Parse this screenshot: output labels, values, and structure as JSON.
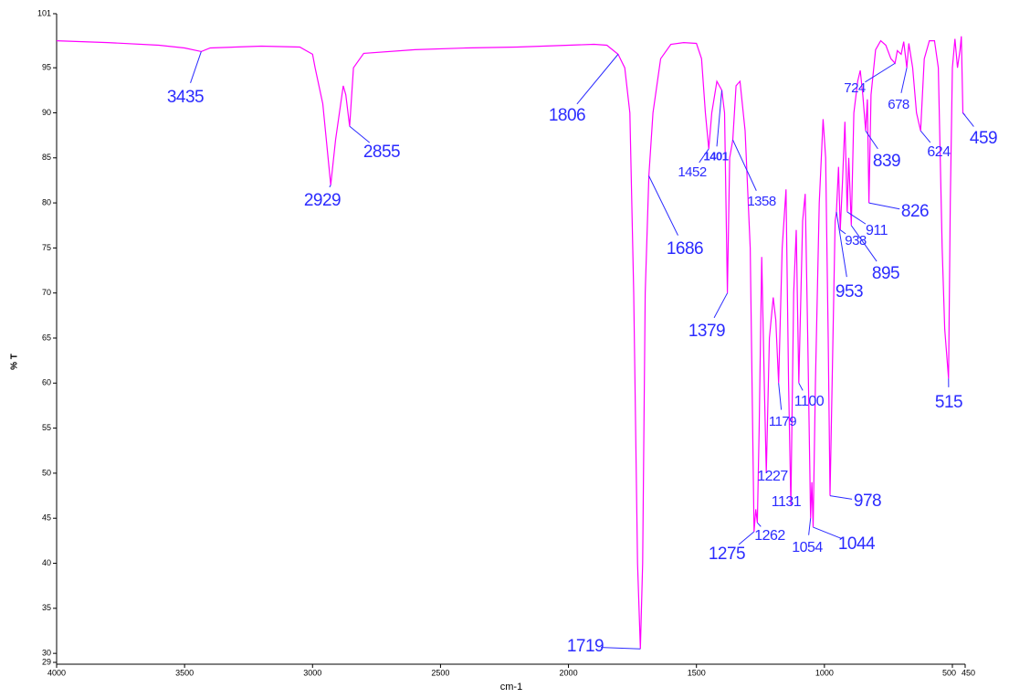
{
  "chart_data": {
    "type": "line",
    "x_label": "cm-1",
    "y_label": "% T",
    "xlim": [
      4000,
      450
    ],
    "ylim": [
      29,
      101
    ],
    "xticks": [
      4000,
      3500,
      3000,
      2500,
      2000,
      1500,
      1000,
      500,
      450
    ],
    "yticks": [
      101,
      95,
      90,
      85,
      80,
      75,
      70,
      65,
      60,
      55,
      50,
      45,
      40,
      35,
      30,
      29
    ],
    "color": "#ff00ff",
    "label_color": "#2b2bff",
    "x": [
      4000,
      3800,
      3600,
      3500,
      3435,
      3400,
      3200,
      3050,
      3000,
      2990,
      2960,
      2929,
      2910,
      2880,
      2870,
      2855,
      2840,
      2800,
      2600,
      2400,
      2200,
      2000,
      1900,
      1850,
      1806,
      1780,
      1760,
      1745,
      1730,
      1719,
      1710,
      1700,
      1686,
      1670,
      1640,
      1600,
      1550,
      1500,
      1480,
      1465,
      1452,
      1440,
      1420,
      1401,
      1390,
      1379,
      1370,
      1358,
      1345,
      1330,
      1310,
      1290,
      1275,
      1268,
      1262,
      1255,
      1245,
      1235,
      1227,
      1215,
      1200,
      1190,
      1179,
      1165,
      1150,
      1140,
      1131,
      1120,
      1110,
      1100,
      1085,
      1075,
      1065,
      1054,
      1049,
      1044,
      1035,
      1020,
      1005,
      995,
      985,
      978,
      970,
      958,
      953,
      945,
      938,
      930,
      920,
      911,
      905,
      895,
      885,
      870,
      860,
      850,
      839,
      832,
      826,
      818,
      800,
      780,
      760,
      740,
      724,
      715,
      700,
      690,
      678,
      670,
      655,
      640,
      624,
      610,
      590,
      570,
      555,
      540,
      530,
      515,
      508,
      500,
      490,
      480,
      470,
      465,
      459,
      450
    ],
    "values": [
      98,
      97.8,
      97.5,
      97.2,
      96.8,
      97.2,
      97.4,
      97.3,
      96.5,
      95,
      91,
      82,
      87,
      93,
      92,
      88.5,
      95,
      96.6,
      97,
      97.2,
      97.3,
      97.5,
      97.6,
      97.5,
      96.5,
      95,
      90,
      70,
      40,
      30.5,
      40,
      70,
      83,
      90,
      96,
      97.6,
      97.8,
      97.7,
      96,
      90,
      86,
      90,
      93.5,
      92.5,
      90,
      70,
      85,
      87,
      93,
      93.5,
      88,
      75,
      43.5,
      46,
      44.5,
      55,
      74,
      60,
      50,
      65,
      69.5,
      67,
      60,
      75,
      81.5,
      60,
      46.5,
      70,
      77,
      60,
      78,
      81,
      65,
      45,
      49,
      44,
      60,
      80,
      89.3,
      85,
      65,
      47.5,
      60,
      78,
      79,
      84,
      77,
      82,
      89,
      79,
      85,
      77.5,
      90,
      93.5,
      94.7,
      92,
      88,
      91.5,
      80,
      92,
      97,
      98,
      97.5,
      96,
      95.5,
      96.9,
      96.5,
      97.9,
      95,
      97.7,
      95,
      90,
      88,
      96,
      98,
      98,
      95,
      75,
      66,
      60.5,
      80,
      95,
      98.2,
      95,
      97,
      98.5,
      90,
      89.7
    ],
    "peaks": [
      {
        "x": 3435,
        "y": 96.8
      },
      {
        "x": 2929,
        "y": 82
      },
      {
        "x": 2855,
        "y": 88.5
      },
      {
        "x": 1806,
        "y": 96.5
      },
      {
        "x": 1719,
        "y": 30.5
      },
      {
        "x": 1686,
        "y": 83
      },
      {
        "x": 1452,
        "y": 86
      },
      {
        "x": 1401,
        "y": 92.5
      },
      {
        "x": 1379,
        "y": 70
      },
      {
        "x": 1358,
        "y": 87
      },
      {
        "x": 1275,
        "y": 43.5
      },
      {
        "x": 1262,
        "y": 44.5
      },
      {
        "x": 1227,
        "y": 50
      },
      {
        "x": 1179,
        "y": 60
      },
      {
        "x": 1131,
        "y": 46.5
      },
      {
        "x": 1100,
        "y": 60
      },
      {
        "x": 1054,
        "y": 45
      },
      {
        "x": 1044,
        "y": 44
      },
      {
        "x": 978,
        "y": 47.5
      },
      {
        "x": 953,
        "y": 79
      },
      {
        "x": 938,
        "y": 77
      },
      {
        "x": 911,
        "y": 79
      },
      {
        "x": 895,
        "y": 77.5
      },
      {
        "x": 839,
        "y": 88
      },
      {
        "x": 826,
        "y": 80
      },
      {
        "x": 724,
        "y": 95.5
      },
      {
        "x": 678,
        "y": 95
      },
      {
        "x": 624,
        "y": 88
      },
      {
        "x": 515,
        "y": 60.5
      },
      {
        "x": 459,
        "y": 90
      }
    ]
  }
}
